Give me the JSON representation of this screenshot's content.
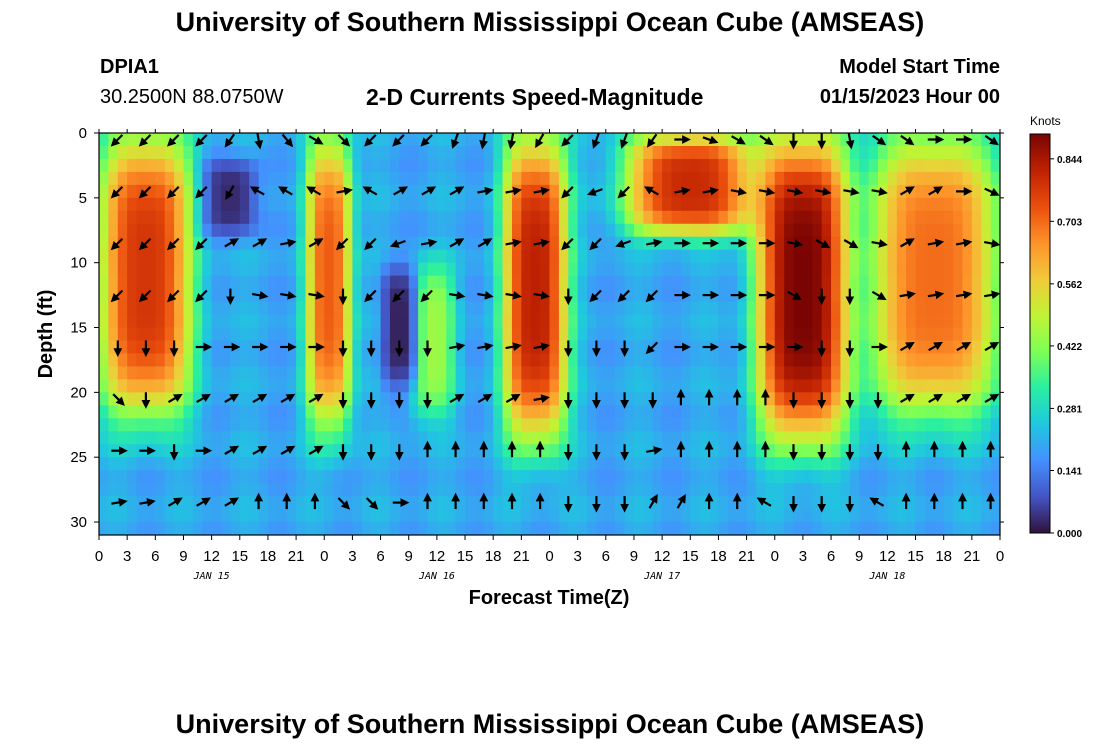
{
  "page": {
    "title": "University of Southern Mississippi Ocean Cube (AMSEAS)",
    "footer_title": "University of Southern Mississippi Ocean Cube (AMSEAS)",
    "station_id": "DPIA1",
    "station_coords": "30.2500N  88.0750W",
    "plot_title": "2-D Currents Speed-Magnitude",
    "model_start_label": "Model Start Time",
    "model_start_value": "01/15/2023 Hour 00"
  },
  "chart_data": {
    "type": "heatmap",
    "title": "2-D Currents Speed-Magnitude",
    "xlabel": "Forecast Time(Z)",
    "ylabel": "Depth (ft)",
    "x_unit": "hours since 01/15/2023 00Z",
    "xlim": [
      0,
      96
    ],
    "ylim": [
      31,
      0
    ],
    "x_tick_values": [
      0,
      3,
      6,
      9,
      12,
      15,
      18,
      21,
      24,
      27,
      30,
      33,
      36,
      39,
      42,
      45,
      48,
      51,
      54,
      57,
      60,
      63,
      66,
      69,
      72,
      75,
      78,
      81,
      84,
      87,
      90,
      93,
      96
    ],
    "x_tick_labels": [
      "0",
      "3",
      "6",
      "9",
      "12",
      "15",
      "18",
      "21",
      "0",
      "3",
      "6",
      "9",
      "12",
      "15",
      "18",
      "21",
      "0",
      "3",
      "6",
      "9",
      "12",
      "15",
      "18",
      "21",
      "0",
      "3",
      "6",
      "9",
      "12",
      "15",
      "18",
      "21",
      "0"
    ],
    "y_ticks": [
      0,
      5,
      10,
      15,
      20,
      25,
      30
    ],
    "y_tick_labels": [
      "0",
      "5",
      "10",
      "15",
      "20",
      "25",
      "30"
    ],
    "day_labels": [
      {
        "text": "JAN 15",
        "hour": 12
      },
      {
        "text": "JAN 16",
        "hour": 36
      },
      {
        "text": "JAN 17",
        "hour": 60
      },
      {
        "text": "JAN 18",
        "hour": 84
      }
    ],
    "colorbar": {
      "unit": "Knots",
      "range": [
        0,
        0.9
      ],
      "tick_values": [
        0.0,
        0.141,
        0.281,
        0.422,
        0.562,
        0.703,
        0.844
      ],
      "tick_labels": [
        "0.000",
        "0.141",
        "0.281",
        "0.422",
        "0.562",
        "0.703",
        "0.844"
      ],
      "colors": [
        "#30123b",
        "#4454c4",
        "#4490fe",
        "#1fc8de",
        "#29efa2",
        "#7dff56",
        "#c1f334",
        "#f1ca3a",
        "#fe922a",
        "#ea4e0d",
        "#be2102",
        "#7a0403"
      ]
    },
    "speed_features_knots": [
      {
        "name": "cell 1",
        "t0": 0,
        "t1": 10,
        "depth0": 0,
        "depth1": 22,
        "peak": 0.78
      },
      {
        "name": "cell 2",
        "t0": 22,
        "t1": 27,
        "depth0": 0,
        "depth1": 23,
        "peak": 0.72
      },
      {
        "name": "cell 3",
        "t0": 43,
        "t1": 50,
        "depth0": 0,
        "depth1": 24,
        "peak": 0.82
      },
      {
        "name": "cell 4",
        "t0": 56,
        "t1": 70,
        "depth0": 0,
        "depth1": 8,
        "peak": 0.8
      },
      {
        "name": "cell 5",
        "t0": 70,
        "t1": 80,
        "depth0": 0,
        "depth1": 24,
        "peak": 0.9
      },
      {
        "name": "cell 6",
        "t0": 82,
        "t1": 96,
        "depth0": 0,
        "depth1": 22,
        "peak": 0.7
      },
      {
        "name": "secondary cell",
        "t0": 33,
        "t1": 38,
        "depth0": 10,
        "depth1": 22,
        "peak": 0.45
      },
      {
        "name": "near-zero pocket",
        "t0": 11,
        "t1": 17,
        "depth0": 2,
        "depth1": 8,
        "peak": 0.03
      },
      {
        "name": "near-zero pocket",
        "t0": 30,
        "t1": 34,
        "depth0": 10,
        "depth1": 20,
        "peak": 0.02
      }
    ],
    "vector_depths": [
      0.5,
      4.5,
      8.5,
      12.5,
      16.5,
      20.5,
      24.5,
      28.5
    ],
    "vector_hours": [
      2,
      5,
      8,
      11,
      14,
      17,
      20,
      23,
      26,
      29,
      32,
      35,
      38,
      41,
      44,
      47,
      50,
      53,
      56,
      59,
      62,
      65,
      68,
      71,
      74,
      77,
      80,
      83,
      86,
      89,
      92,
      95
    ],
    "vector_directions_deg_from_north": [
      [
        225,
        225,
        225,
        225,
        215,
        170,
        140,
        120,
        135,
        225,
        225,
        225,
        200,
        190,
        190,
        210,
        225,
        200,
        200,
        215,
        90,
        110,
        120,
        125,
        180,
        180,
        170,
        125,
        125,
        90,
        90,
        125
      ],
      [
        225,
        225,
        225,
        225,
        210,
        300,
        300,
        300,
        80,
        300,
        60,
        60,
        60,
        80,
        80,
        80,
        225,
        250,
        225,
        300,
        80,
        80,
        100,
        100,
        100,
        100,
        100,
        100,
        60,
        60,
        90,
        115
      ],
      [
        225,
        225,
        225,
        225,
        60,
        60,
        80,
        60,
        225,
        225,
        250,
        80,
        60,
        60,
        80,
        80,
        225,
        225,
        250,
        80,
        90,
        90,
        90,
        90,
        100,
        120,
        120,
        100,
        60,
        80,
        80,
        100
      ],
      [
        225,
        225,
        225,
        225,
        180,
        100,
        100,
        100,
        180,
        225,
        225,
        225,
        100,
        100,
        100,
        100,
        180,
        225,
        225,
        225,
        90,
        90,
        90,
        90,
        120,
        180,
        180,
        120,
        80,
        80,
        80,
        80
      ],
      [
        180,
        180,
        180,
        90,
        90,
        90,
        90,
        90,
        180,
        180,
        180,
        180,
        80,
        80,
        80,
        80,
        180,
        180,
        180,
        225,
        90,
        90,
        90,
        90,
        90,
        180,
        180,
        90,
        60,
        60,
        60,
        60
      ],
      [
        135,
        180,
        60,
        60,
        60,
        60,
        60,
        60,
        180,
        180,
        180,
        180,
        60,
        60,
        60,
        80,
        180,
        180,
        180,
        180,
        0,
        0,
        0,
        0,
        180,
        180,
        180,
        180,
        60,
        60,
        60,
        60
      ],
      [
        90,
        90,
        180,
        90,
        60,
        60,
        60,
        60,
        180,
        180,
        180,
        0,
        0,
        0,
        0,
        0,
        180,
        180,
        180,
        80,
        0,
        0,
        0,
        0,
        180,
        180,
        180,
        180,
        0,
        0,
        0,
        0
      ],
      [
        80,
        80,
        60,
        60,
        60,
        0,
        0,
        0,
        135,
        135,
        90,
        0,
        0,
        0,
        0,
        0,
        180,
        180,
        180,
        30,
        30,
        0,
        0,
        300,
        180,
        180,
        180,
        300,
        0,
        0,
        0,
        0
      ]
    ]
  }
}
